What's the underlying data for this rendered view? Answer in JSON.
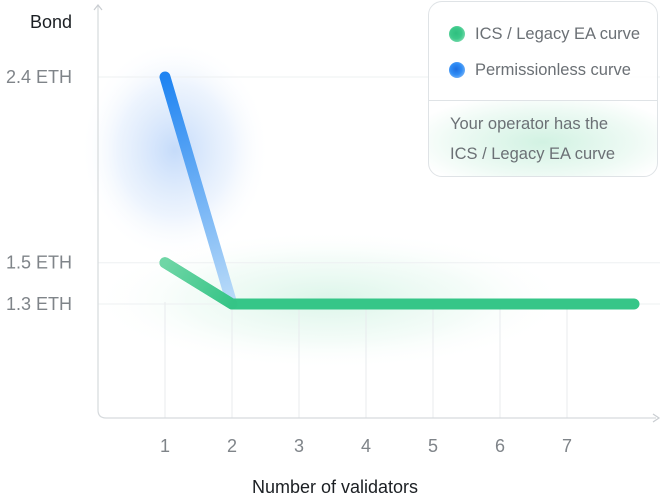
{
  "chart_data": {
    "type": "line",
    "xlabel": "Number of validators",
    "ylabel": "Bond",
    "x_ticks": [
      "1",
      "2",
      "3",
      "4",
      "5",
      "6",
      "7"
    ],
    "y_ticks": [
      {
        "value": 1.3,
        "label": "1.3 ETH"
      },
      {
        "value": 1.5,
        "label": "1.5 ETH"
      },
      {
        "value": 2.4,
        "label": "2.4 ETH"
      }
    ],
    "series": [
      {
        "name": "ICS / Legacy EA curve",
        "color": "#3cc98a",
        "x": [
          1,
          2,
          3,
          4,
          5,
          6,
          7,
          8
        ],
        "y": [
          1.5,
          1.3,
          1.3,
          1.3,
          1.3,
          1.3,
          1.3,
          1.3
        ]
      },
      {
        "name": "Permissionless curve",
        "color": "#2f8cf5",
        "x": [
          1,
          2
        ],
        "y": [
          2.4,
          1.3
        ]
      }
    ],
    "legend_position": "top-right",
    "grid": true
  },
  "legend": {
    "note": "Your operator has the ICS / Legacy EA curve"
  }
}
